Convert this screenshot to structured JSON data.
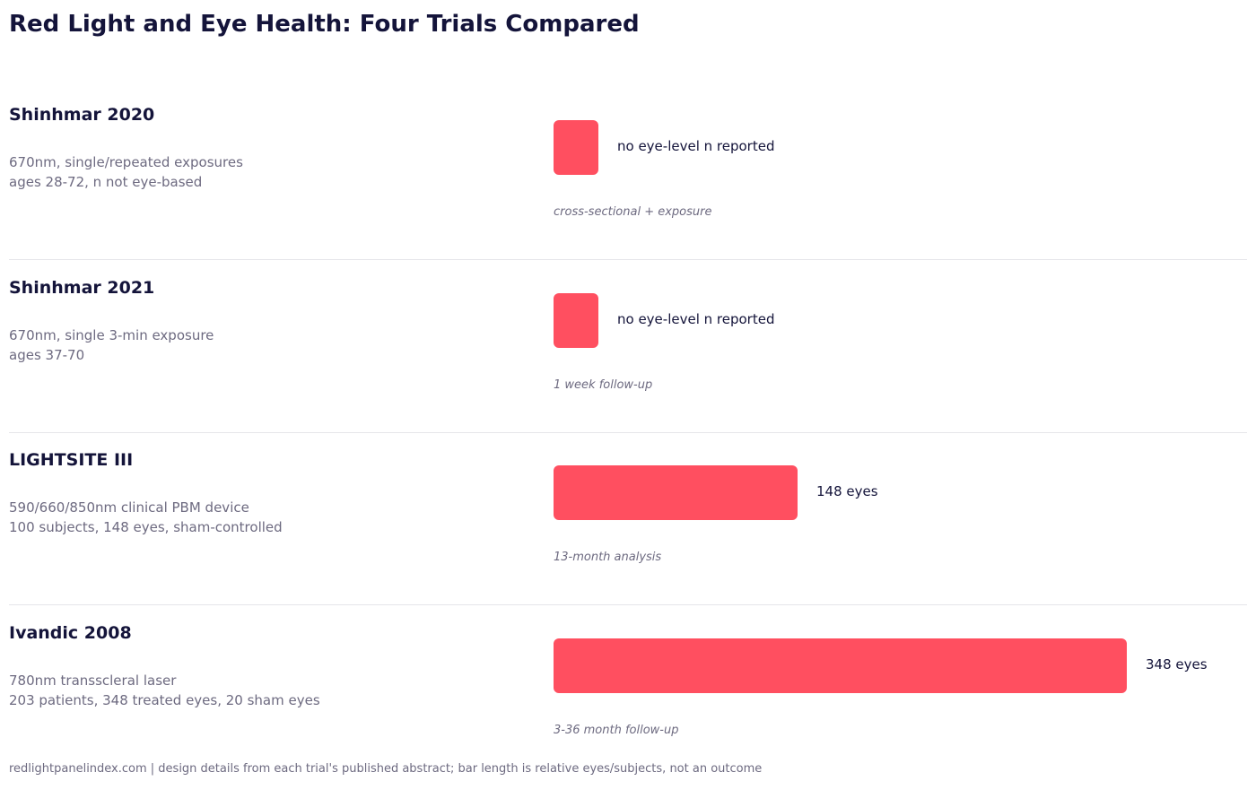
{
  "title": "Red Light and Eye Health: Four Trials Compared",
  "footer": "redlightpanelindex.com  |  design details from each trial's published abstract; bar length is relative eyes/subjects, not an outcome",
  "colors": {
    "bar": "#ff4f60",
    "text": "#14143a",
    "muted": "#6d6a80",
    "divider": "#e6e6ea"
  },
  "chart_data": {
    "type": "bar",
    "orientation": "horizontal",
    "title": "Red Light and Eye Health: Four Trials Compared",
    "categories": [
      "Shinhmar 2020",
      "Shinhmar 2021",
      "LIGHTSITE III",
      "Ivandic 2008"
    ],
    "values": [
      null,
      null,
      148,
      348
    ],
    "unit": "eyes",
    "rows": [
      {
        "name": "Shinhmar 2020",
        "desc": [
          "670nm, single/repeated exposures",
          "ages 28-72, n not eye-based"
        ],
        "value": null,
        "value_label": "no eye-level n reported",
        "note": "cross-sectional + exposure"
      },
      {
        "name": "Shinhmar 2021",
        "desc": [
          "670nm, single 3-min exposure",
          "ages 37-70"
        ],
        "value": null,
        "value_label": "no eye-level n reported",
        "note": "1 week follow-up"
      },
      {
        "name": "LIGHTSITE III",
        "desc": [
          "590/660/850nm clinical PBM device",
          "100 subjects, 148 eyes, sham-controlled"
        ],
        "value": 148,
        "value_label": "148 eyes",
        "note": "13-month analysis"
      },
      {
        "name": "Ivandic 2008",
        "desc": [
          "780nm transscleral laser",
          "203 patients, 348 treated eyes, 20 sham eyes"
        ],
        "value": 348,
        "value_label": "348 eyes",
        "note": "3-36 month follow-up"
      }
    ]
  }
}
